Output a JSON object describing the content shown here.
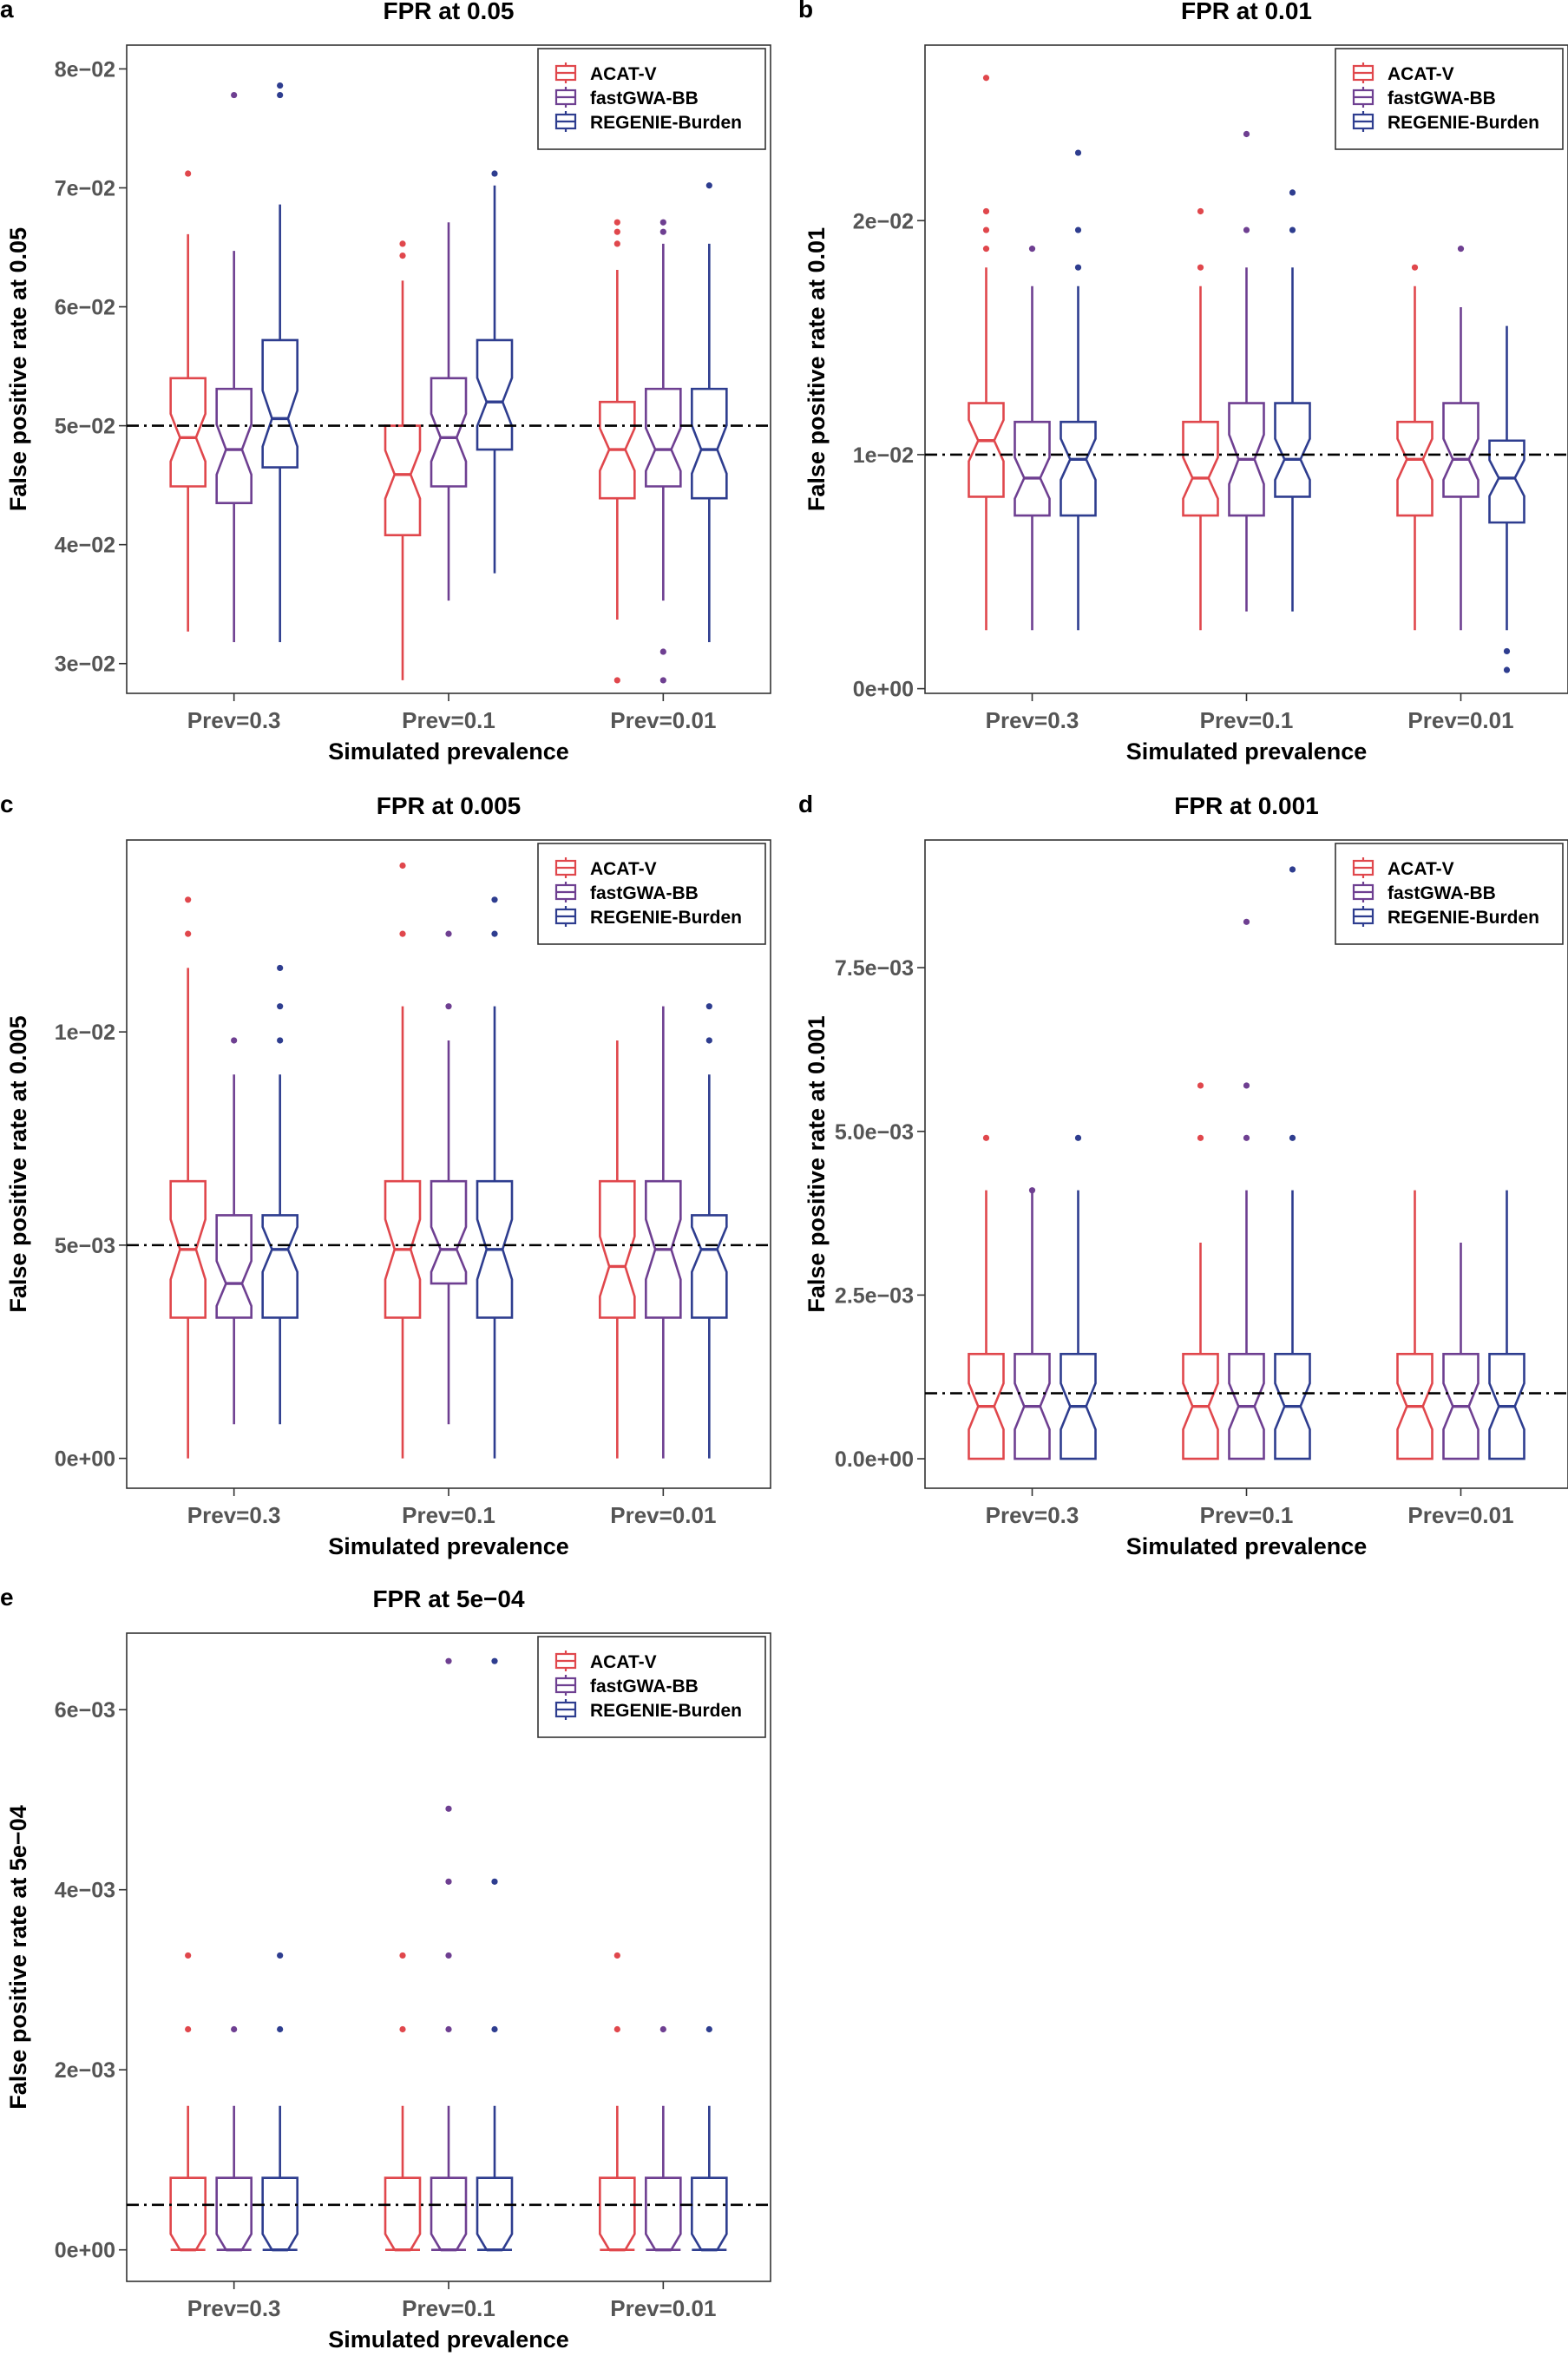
{
  "colors": {
    "ACAT-V": "#E0474C",
    "fastGWA-BB": "#6E3F91",
    "REGENIE-Burden": "#2E3D8F",
    "threshold": "#000000"
  },
  "chart_data": [
    {
      "type": "boxplot",
      "panel_label": "a",
      "title": "FPR at 0.05",
      "xlabel": "Simulated prevalence",
      "ylabel": "False positive rate at 0.05",
      "categories": [
        "Prev=0.3",
        "Prev=0.1",
        "Prev=0.01"
      ],
      "legend": [
        "ACAT-V",
        "fastGWA-BB",
        "REGENIE-Burden"
      ],
      "legend_position": "top-right",
      "yticks": [
        0.03,
        0.04,
        0.05,
        0.06,
        0.07,
        0.08
      ],
      "yticklabels": [
        "3e−02",
        "4e−02",
        "5e−02",
        "6e−02",
        "7e−02",
        "8e−02"
      ],
      "ylim": [
        0.0275,
        0.082
      ],
      "threshold": 0.05,
      "series": [
        {
          "name": "ACAT-V",
          "boxes": [
            {
              "min": 0.0327,
              "q1": 0.0449,
              "median": 0.049,
              "q3": 0.054,
              "max": 0.0661,
              "outliers": [
                0.0712
              ]
            },
            {
              "min": 0.0286,
              "q1": 0.0408,
              "median": 0.0459,
              "q3": 0.05,
              "max": 0.0622,
              "outliers": [
                0.0643,
                0.0653
              ]
            },
            {
              "min": 0.0337,
              "q1": 0.0439,
              "median": 0.048,
              "q3": 0.052,
              "max": 0.0631,
              "outliers": [
                0.0653,
                0.0663,
                0.0671,
                0.0286
              ]
            }
          ]
        },
        {
          "name": "fastGWA-BB",
          "boxes": [
            {
              "min": 0.0318,
              "q1": 0.0435,
              "median": 0.048,
              "q3": 0.0531,
              "max": 0.0647,
              "outliers": [
                0.0778
              ]
            },
            {
              "min": 0.0353,
              "q1": 0.0449,
              "median": 0.049,
              "q3": 0.054,
              "max": 0.0671,
              "outliers": []
            },
            {
              "min": 0.0353,
              "q1": 0.0449,
              "median": 0.048,
              "q3": 0.0531,
              "max": 0.0653,
              "outliers": [
                0.0663,
                0.0671,
                0.031,
                0.0286
              ]
            }
          ]
        },
        {
          "name": "REGENIE-Burden",
          "boxes": [
            {
              "min": 0.0318,
              "q1": 0.0465,
              "median": 0.0506,
              "q3": 0.0572,
              "max": 0.0686,
              "outliers": [
                0.0778,
                0.0786
              ]
            },
            {
              "min": 0.0376,
              "q1": 0.048,
              "median": 0.052,
              "q3": 0.0572,
              "max": 0.0702,
              "outliers": [
                0.0712
              ]
            },
            {
              "min": 0.0318,
              "q1": 0.0439,
              "median": 0.048,
              "q3": 0.0531,
              "max": 0.0653,
              "outliers": [
                0.0702
              ]
            }
          ]
        }
      ]
    },
    {
      "type": "boxplot",
      "panel_label": "b",
      "title": "FPR at 0.01",
      "xlabel": "Simulated prevalence",
      "ylabel": "False positive rate at 0.01",
      "categories": [
        "Prev=0.3",
        "Prev=0.1",
        "Prev=0.01"
      ],
      "legend": [
        "ACAT-V",
        "fastGWA-BB",
        "REGENIE-Burden"
      ],
      "legend_position": "top-right",
      "yticks": [
        0.0,
        0.01,
        0.02
      ],
      "yticklabels": [
        "0e+00",
        "1e−02",
        "2e−02"
      ],
      "ylim": [
        -0.0002,
        0.0275
      ],
      "threshold": 0.01,
      "series": [
        {
          "name": "ACAT-V",
          "boxes": [
            {
              "min": 0.0025,
              "q1": 0.0082,
              "median": 0.0106,
              "q3": 0.0122,
              "max": 0.018,
              "outliers": [
                0.0188,
                0.0196,
                0.0204,
                0.0261
              ]
            },
            {
              "min": 0.0025,
              "q1": 0.0074,
              "median": 0.009,
              "q3": 0.0114,
              "max": 0.0172,
              "outliers": [
                0.018,
                0.0204
              ]
            },
            {
              "min": 0.0025,
              "q1": 0.0074,
              "median": 0.0098,
              "q3": 0.0114,
              "max": 0.0172,
              "outliers": [
                0.018
              ]
            }
          ]
        },
        {
          "name": "fastGWA-BB",
          "boxes": [
            {
              "min": 0.0025,
              "q1": 0.0074,
              "median": 0.009,
              "q3": 0.0114,
              "max": 0.0172,
              "outliers": [
                0.0188
              ]
            },
            {
              "min": 0.0033,
              "q1": 0.0074,
              "median": 0.0098,
              "q3": 0.0122,
              "max": 0.018,
              "outliers": [
                0.0196,
                0.0237
              ]
            },
            {
              "min": 0.0025,
              "q1": 0.0082,
              "median": 0.0098,
              "q3": 0.0122,
              "max": 0.0163,
              "outliers": [
                0.0188
              ]
            }
          ]
        },
        {
          "name": "REGENIE-Burden",
          "boxes": [
            {
              "min": 0.0025,
              "q1": 0.0074,
              "median": 0.0098,
              "q3": 0.0114,
              "max": 0.0172,
              "outliers": [
                0.018,
                0.0196,
                0.0229
              ]
            },
            {
              "min": 0.0033,
              "q1": 0.0082,
              "median": 0.0098,
              "q3": 0.0122,
              "max": 0.018,
              "outliers": [
                0.0196,
                0.0212
              ]
            },
            {
              "min": 0.0025,
              "q1": 0.0071,
              "median": 0.009,
              "q3": 0.0106,
              "max": 0.0155,
              "outliers": [
                0.0016,
                0.0008
              ]
            }
          ]
        }
      ]
    },
    {
      "type": "boxplot",
      "panel_label": "c",
      "title": "FPR at 0.005",
      "xlabel": "Simulated prevalence",
      "ylabel": "False positive rate at 0.005",
      "categories": [
        "Prev=0.3",
        "Prev=0.1",
        "Prev=0.01"
      ],
      "legend": [
        "ACAT-V",
        "fastGWA-BB",
        "REGENIE-Burden"
      ],
      "legend_position": "top-right",
      "yticks": [
        0.0,
        0.005,
        0.01
      ],
      "yticklabels": [
        "0e+00",
        "5e−03",
        "1e−02"
      ],
      "ylim": [
        -0.0007,
        0.0145
      ],
      "threshold": 0.005,
      "series": [
        {
          "name": "ACAT-V",
          "boxes": [
            {
              "min": 0.0,
              "q1": 0.0033,
              "median": 0.0049,
              "q3": 0.0065,
              "max": 0.0115,
              "outliers": [
                0.0123,
                0.0131
              ]
            },
            {
              "min": 0.0,
              "q1": 0.0033,
              "median": 0.0049,
              "q3": 0.0065,
              "max": 0.0106,
              "outliers": [
                0.0123,
                0.0139
              ]
            },
            {
              "min": 0.0,
              "q1": 0.0033,
              "median": 0.0045,
              "q3": 0.0065,
              "max": 0.0098,
              "outliers": []
            }
          ]
        },
        {
          "name": "fastGWA-BB",
          "boxes": [
            {
              "min": 0.0008,
              "q1": 0.0033,
              "median": 0.0041,
              "q3": 0.0057,
              "max": 0.009,
              "outliers": [
                0.0098
              ]
            },
            {
              "min": 0.0008,
              "q1": 0.0041,
              "median": 0.0049,
              "q3": 0.0065,
              "max": 0.0098,
              "outliers": [
                0.0106,
                0.0123
              ]
            },
            {
              "min": 0.0,
              "q1": 0.0033,
              "median": 0.0049,
              "q3": 0.0065,
              "max": 0.0106,
              "outliers": []
            }
          ]
        },
        {
          "name": "REGENIE-Burden",
          "boxes": [
            {
              "min": 0.0008,
              "q1": 0.0033,
              "median": 0.0049,
              "q3": 0.0057,
              "max": 0.009,
              "outliers": [
                0.0098,
                0.0106,
                0.0115
              ]
            },
            {
              "min": 0.0,
              "q1": 0.0033,
              "median": 0.0049,
              "q3": 0.0065,
              "max": 0.0106,
              "outliers": [
                0.0123,
                0.0131
              ]
            },
            {
              "min": 0.0,
              "q1": 0.0033,
              "median": 0.0049,
              "q3": 0.0057,
              "max": 0.009,
              "outliers": [
                0.0098,
                0.0106
              ]
            }
          ]
        }
      ]
    },
    {
      "type": "boxplot",
      "panel_label": "d",
      "title": "FPR at 0.001",
      "xlabel": "Simulated prevalence",
      "ylabel": "False positive rate at 0.001",
      "categories": [
        "Prev=0.3",
        "Prev=0.1",
        "Prev=0.01"
      ],
      "legend": [
        "ACAT-V",
        "fastGWA-BB",
        "REGENIE-Burden"
      ],
      "legend_position": "top-right",
      "yticks": [
        0.0,
        0.0025,
        0.005,
        0.0075
      ],
      "yticklabels": [
        "0.0e+00",
        "2.5e−03",
        "5.0e−03",
        "7.5e−03"
      ],
      "ylim": [
        -0.00045,
        0.00945
      ],
      "threshold": 0.001,
      "series": [
        {
          "name": "ACAT-V",
          "boxes": [
            {
              "min": 0.0,
              "q1": 0.0,
              "median": 0.0008,
              "q3": 0.0016,
              "max": 0.0041,
              "outliers": [
                0.0049
              ]
            },
            {
              "min": 0.0,
              "q1": 0.0,
              "median": 0.0008,
              "q3": 0.0016,
              "max": 0.0033,
              "outliers": [
                0.0049,
                0.0057
              ]
            },
            {
              "min": 0.0,
              "q1": 0.0,
              "median": 0.0008,
              "q3": 0.0016,
              "max": 0.0041,
              "outliers": []
            }
          ]
        },
        {
          "name": "fastGWA-BB",
          "boxes": [
            {
              "min": 0.0,
              "q1": 0.0,
              "median": 0.0008,
              "q3": 0.0016,
              "max": 0.0041,
              "outliers": [
                0.0041
              ]
            },
            {
              "min": 0.0,
              "q1": 0.0,
              "median": 0.0008,
              "q3": 0.0016,
              "max": 0.0041,
              "outliers": [
                0.0049,
                0.0057,
                0.0082
              ]
            },
            {
              "min": 0.0,
              "q1": 0.0,
              "median": 0.0008,
              "q3": 0.0016,
              "max": 0.0033,
              "outliers": []
            }
          ]
        },
        {
          "name": "REGENIE-Burden",
          "boxes": [
            {
              "min": 0.0,
              "q1": 0.0,
              "median": 0.0008,
              "q3": 0.0016,
              "max": 0.0041,
              "outliers": [
                0.0049
              ]
            },
            {
              "min": 0.0,
              "q1": 0.0,
              "median": 0.0008,
              "q3": 0.0016,
              "max": 0.0041,
              "outliers": [
                0.0049,
                0.009
              ]
            },
            {
              "min": 0.0,
              "q1": 0.0,
              "median": 0.0008,
              "q3": 0.0016,
              "max": 0.0041,
              "outliers": []
            }
          ]
        }
      ]
    },
    {
      "type": "boxplot",
      "panel_label": "e",
      "title": "FPR at 5e−04",
      "xlabel": "Simulated prevalence",
      "ylabel": "False positive rate at 5e−04",
      "categories": [
        "Prev=0.3",
        "Prev=0.1",
        "Prev=0.01"
      ],
      "legend": [
        "ACAT-V",
        "fastGWA-BB",
        "REGENIE-Burden"
      ],
      "legend_position": "top-right",
      "yticks": [
        0.0,
        0.002,
        0.004,
        0.006
      ],
      "yticklabels": [
        "0e+00",
        "2e−03",
        "4e−03",
        "6e−03"
      ],
      "ylim": [
        -0.00035,
        0.00685
      ],
      "threshold": 0.0005,
      "series": [
        {
          "name": "ACAT-V",
          "boxes": [
            {
              "min": 0.0,
              "q1": 0.0,
              "median": 0.0,
              "q3": 0.0008,
              "max": 0.0016,
              "outliers": [
                0.00245,
                0.00327
              ]
            },
            {
              "min": 0.0,
              "q1": 0.0,
              "median": 0.0,
              "q3": 0.0008,
              "max": 0.0016,
              "outliers": [
                0.00245,
                0.00327
              ]
            },
            {
              "min": 0.0,
              "q1": 0.0,
              "median": 0.0,
              "q3": 0.0008,
              "max": 0.0016,
              "outliers": [
                0.00245,
                0.00327
              ]
            }
          ]
        },
        {
          "name": "fastGWA-BB",
          "boxes": [
            {
              "min": 0.0,
              "q1": 0.0,
              "median": 0.0,
              "q3": 0.0008,
              "max": 0.0016,
              "outliers": [
                0.00245
              ]
            },
            {
              "min": 0.0,
              "q1": 0.0,
              "median": 0.0,
              "q3": 0.0008,
              "max": 0.0016,
              "outliers": [
                0.00245,
                0.00327,
                0.00409,
                0.0049,
                0.00654
              ]
            },
            {
              "min": 0.0,
              "q1": 0.0,
              "median": 0.0,
              "q3": 0.0008,
              "max": 0.0016,
              "outliers": [
                0.00245
              ]
            }
          ]
        },
        {
          "name": "REGENIE-Burden",
          "boxes": [
            {
              "min": 0.0,
              "q1": 0.0,
              "median": 0.0,
              "q3": 0.0008,
              "max": 0.0016,
              "outliers": [
                0.00245,
                0.00327
              ]
            },
            {
              "min": 0.0,
              "q1": 0.0,
              "median": 0.0,
              "q3": 0.0008,
              "max": 0.0016,
              "outliers": [
                0.00245,
                0.00409,
                0.00654
              ]
            },
            {
              "min": 0.0,
              "q1": 0.0,
              "median": 0.0,
              "q3": 0.0008,
              "max": 0.0016,
              "outliers": [
                0.00245
              ]
            }
          ]
        }
      ]
    }
  ]
}
